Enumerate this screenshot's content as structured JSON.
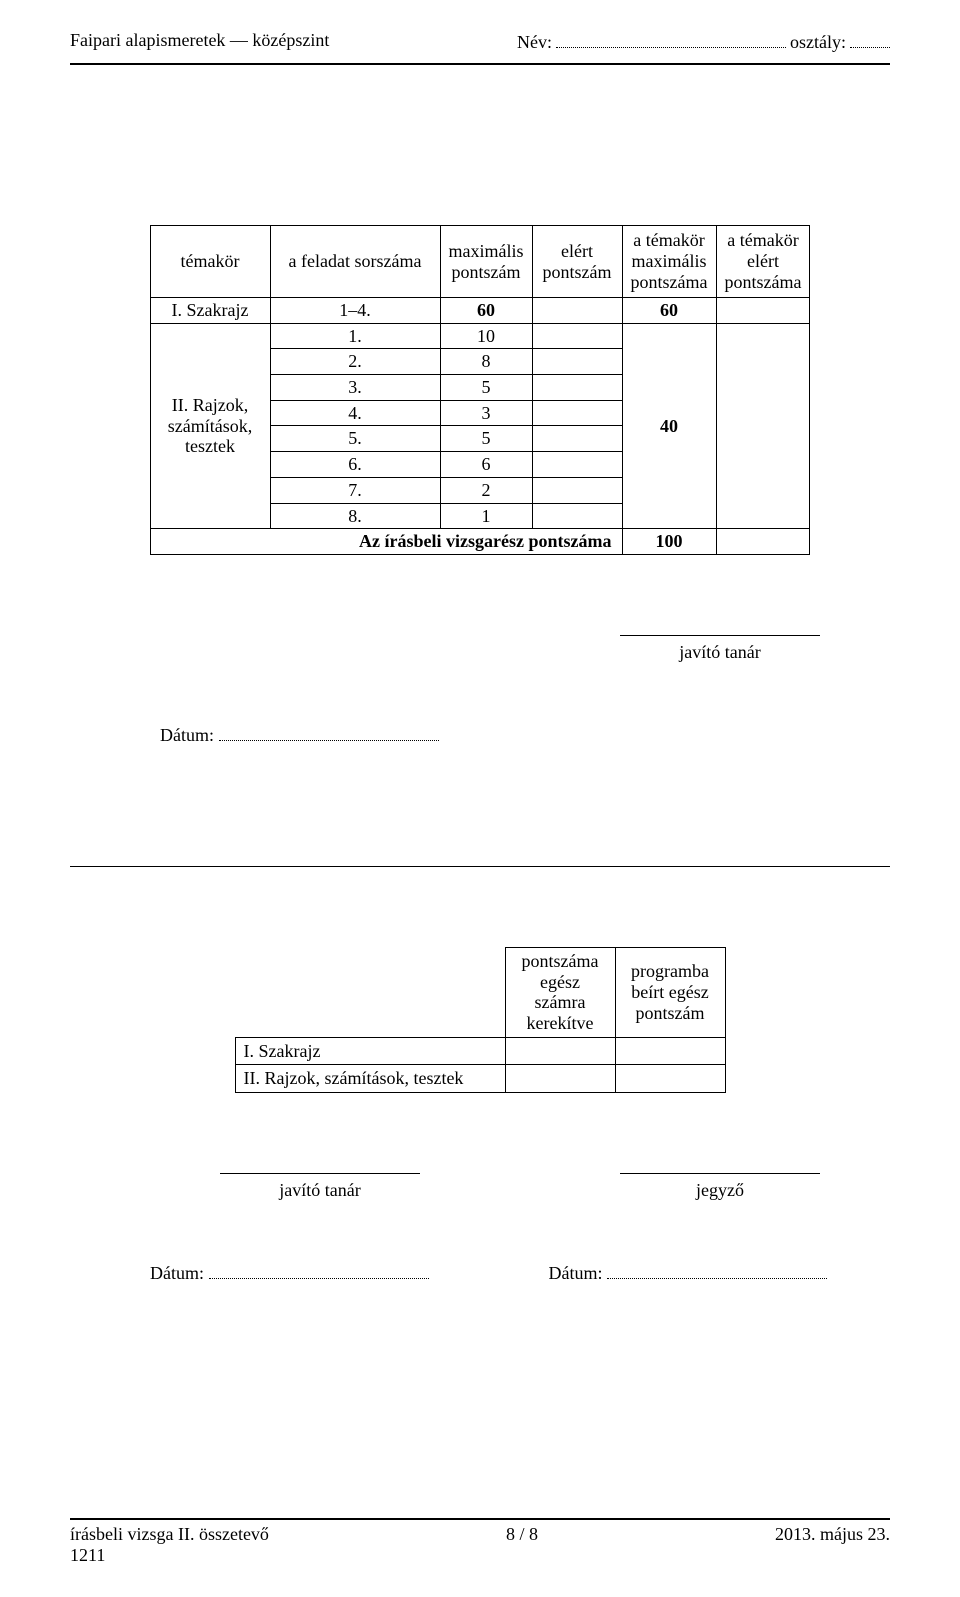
{
  "header": {
    "left": "Faipari alapismeretek — középszint",
    "name_label": "Név:",
    "class_label": "osztály:"
  },
  "table1": {
    "headers": {
      "c1": "témakör",
      "c2": "a feladat sorszáma",
      "c3": "maximális\npontszám",
      "c4": "elért\npontszám",
      "c5": "a témakör\nmaximális\npontszáma",
      "c6": "a témakör\nelért\npontszáma"
    },
    "row1": {
      "topic": "I. Szakrajz",
      "task": "1–4.",
      "max": "60",
      "group_max": "60"
    },
    "group2_label": "II. Rajzok,\nszámítások,\ntesztek",
    "group2_rows": [
      {
        "task": "1.",
        "max": "10"
      },
      {
        "task": "2.",
        "max": "8"
      },
      {
        "task": "3.",
        "max": "5"
      },
      {
        "task": "4.",
        "max": "3"
      },
      {
        "task": "5.",
        "max": "5"
      },
      {
        "task": "6.",
        "max": "6"
      },
      {
        "task": "7.",
        "max": "2"
      },
      {
        "task": "8.",
        "max": "1"
      }
    ],
    "group2_max": "40",
    "sum_label": "Az írásbeli vizsgarész pontszáma",
    "sum_value": "100"
  },
  "teacher_label": "javító tanár",
  "date_label": "Dátum:",
  "table2": {
    "h1": "pontszáma\negész\nszámra\nkerekítve",
    "h2": "programba\nbeírt egész\npontszám",
    "r1": "I. Szakrajz",
    "r2": "II. Rajzok, számítások, tesztek"
  },
  "sig_teacher": "javító tanár",
  "sig_registrar": "jegyző",
  "footer": {
    "left1": "írásbeli vizsga II. összetevő",
    "left2": "1211",
    "center": "8 / 8",
    "right": "2013. május 23."
  }
}
